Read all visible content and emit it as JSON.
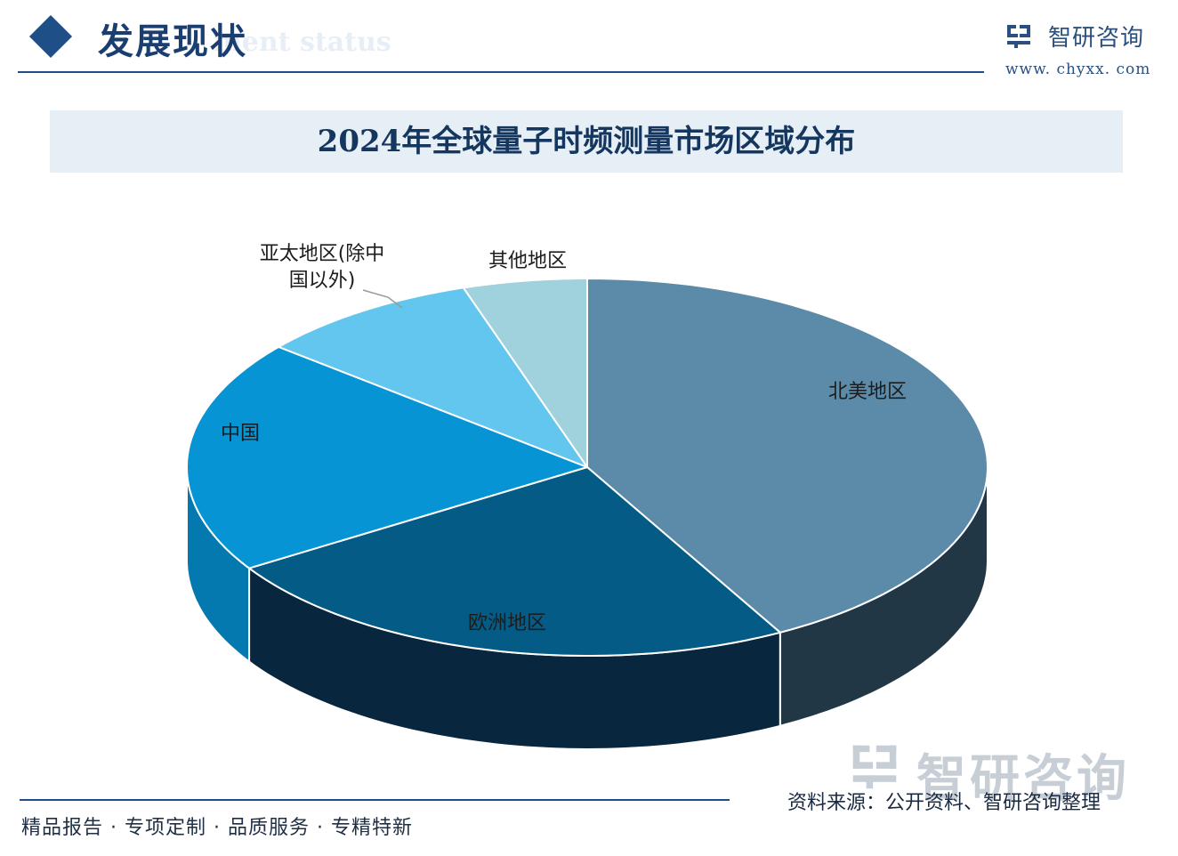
{
  "header": {
    "section_title": "发展现状",
    "section_subtitle": "ment status",
    "logo_text": "智研咨询",
    "logo_url": "www. chyxx. com"
  },
  "chart_data": {
    "type": "pie",
    "title": "2024年全球量子时频测量市场区域分布",
    "categories": [
      "北美地区",
      "欧洲地区",
      "中国",
      "亚太地区(除中国以外)",
      "其他地区"
    ],
    "values": [
      42,
      24,
      20,
      9,
      5
    ],
    "colors": [
      "#5b8ba8",
      "#045b86",
      "#0694d4",
      "#62c6ef",
      "#9fd2dc"
    ],
    "side_colors": [
      "#223746",
      "#08263e",
      "#0479b0",
      "#4aa9d0",
      "#82b4bd"
    ],
    "labels_shown": [
      "北美地区",
      "欧洲地区",
      "中国",
      "亚太地区(除中\n国以外)",
      "其他地区"
    ]
  },
  "footer": {
    "slogan": "精品报告 · 专项定制 · 品质服务 · 专精特新",
    "source": "资料来源：公开资料、智研咨询整理",
    "watermark": "智研咨询"
  }
}
